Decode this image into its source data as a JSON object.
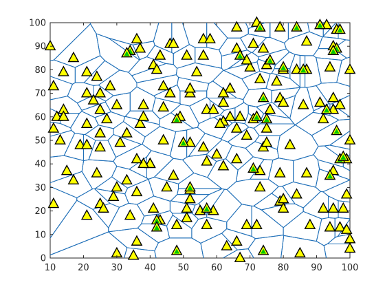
{
  "chart_data": {
    "type": "scatter",
    "title": "",
    "xlabel": "",
    "ylabel": "",
    "xlim": [
      10,
      100
    ],
    "ylim": [
      0,
      100
    ],
    "x_ticks": [
      10,
      20,
      30,
      40,
      50,
      60,
      70,
      80,
      90,
      100
    ],
    "y_ticks": [
      0,
      10,
      20,
      30,
      40,
      50,
      60,
      70,
      80,
      90,
      100
    ],
    "x_tick_labels": [
      "10",
      "20",
      "30",
      "40",
      "50",
      "60",
      "70",
      "80",
      "90",
      "100"
    ],
    "y_tick_labels": [
      "0",
      "10",
      "20",
      "30",
      "40",
      "50",
      "60",
      "70",
      "80",
      "90",
      "100"
    ],
    "grid": false,
    "legend": "none",
    "marker_colors": {
      "fill": "#ffff00",
      "edge": "#000000",
      "inner": "#00c800",
      "edges": "#1f6fb8"
    },
    "points_triangle": [
      [
        10,
        90
      ],
      [
        17,
        85
      ],
      [
        14,
        79
      ],
      [
        21,
        79
      ],
      [
        11,
        73
      ],
      [
        24,
        77
      ],
      [
        28,
        73
      ],
      [
        21,
        70
      ],
      [
        25,
        70
      ],
      [
        23,
        67
      ],
      [
        14,
        63
      ],
      [
        12,
        60
      ],
      [
        25,
        63
      ],
      [
        30,
        65
      ],
      [
        21,
        57
      ],
      [
        27,
        59
      ],
      [
        11,
        55
      ],
      [
        13,
        50
      ],
      [
        19,
        48
      ],
      [
        21,
        48
      ],
      [
        25,
        47
      ],
      [
        25,
        53
      ],
      [
        33,
        53
      ],
      [
        31,
        49
      ],
      [
        37,
        57
      ],
      [
        38,
        60
      ],
      [
        38,
        65
      ],
      [
        44,
        50
      ],
      [
        44,
        64
      ],
      [
        49,
        60
      ],
      [
        44,
        73
      ],
      [
        46,
        70
      ],
      [
        52,
        70
      ],
      [
        54,
        79
      ],
      [
        52,
        72
      ],
      [
        36,
        93
      ],
      [
        37,
        89
      ],
      [
        46,
        91
      ],
      [
        41,
        82
      ],
      [
        43,
        86
      ],
      [
        47,
        91
      ],
      [
        51,
        86
      ],
      [
        56,
        93
      ],
      [
        58,
        93
      ],
      [
        56,
        86
      ],
      [
        42,
        80
      ],
      [
        57,
        63
      ],
      [
        59,
        63
      ],
      [
        62,
        66
      ],
      [
        64,
        72
      ],
      [
        62,
        58
      ],
      [
        64,
        60
      ],
      [
        66,
        55
      ],
      [
        67,
        60
      ],
      [
        66,
        42
      ],
      [
        56,
        47
      ],
      [
        52,
        49
      ],
      [
        57,
        41
      ],
      [
        52,
        29
      ],
      [
        47,
        35
      ],
      [
        45,
        30
      ],
      [
        40,
        40
      ],
      [
        40,
        40
      ],
      [
        38,
        40
      ],
      [
        36,
        42
      ],
      [
        41,
        21
      ],
      [
        43,
        16
      ],
      [
        51,
        21
      ],
      [
        51,
        17
      ],
      [
        33,
        33
      ],
      [
        36,
        28
      ],
      [
        29,
        26
      ],
      [
        25,
        23
      ],
      [
        26,
        21
      ],
      [
        21,
        18
      ],
      [
        15,
        37
      ],
      [
        17,
        33
      ],
      [
        11,
        23
      ],
      [
        24,
        36
      ],
      [
        14,
        60
      ],
      [
        34,
        18
      ],
      [
        36,
        7
      ],
      [
        30,
        2
      ],
      [
        35,
        1
      ],
      [
        55,
        20
      ],
      [
        48,
        14
      ],
      [
        57,
        14
      ],
      [
        59,
        20
      ],
      [
        63,
        5
      ],
      [
        66,
        7
      ],
      [
        67,
        0
      ],
      [
        69,
        14
      ],
      [
        72,
        14
      ],
      [
        73,
        30
      ],
      [
        73,
        37
      ],
      [
        74,
        47
      ],
      [
        69,
        52
      ],
      [
        72,
        60
      ],
      [
        75,
        55
      ],
      [
        75,
        49
      ],
      [
        79,
        36
      ],
      [
        79,
        24
      ],
      [
        80,
        21
      ],
      [
        80,
        25
      ],
      [
        84,
        27
      ],
      [
        82,
        48
      ],
      [
        87,
        36
      ],
      [
        85,
        2
      ],
      [
        88,
        14
      ],
      [
        92,
        21
      ],
      [
        95,
        21
      ],
      [
        98,
        21
      ],
      [
        94,
        13
      ],
      [
        97,
        13
      ],
      [
        99,
        12
      ],
      [
        100,
        8
      ],
      [
        100,
        4
      ],
      [
        99,
        27
      ],
      [
        95,
        37
      ],
      [
        100,
        50
      ],
      [
        99,
        42
      ],
      [
        95,
        63
      ],
      [
        92,
        59
      ],
      [
        97,
        65
      ],
      [
        95,
        68
      ],
      [
        91,
        66
      ],
      [
        86,
        65
      ],
      [
        84,
        80
      ],
      [
        87,
        80
      ],
      [
        80,
        80
      ],
      [
        78,
        75
      ],
      [
        79,
        68
      ],
      [
        73,
        76
      ],
      [
        75,
        82
      ],
      [
        76,
        63
      ],
      [
        80,
        66
      ],
      [
        70,
        81
      ],
      [
        69,
        84
      ],
      [
        71,
        91
      ],
      [
        73,
        98
      ],
      [
        72,
        100
      ],
      [
        66,
        98
      ],
      [
        66,
        89
      ],
      [
        74,
        89
      ],
      [
        79,
        98
      ],
      [
        87,
        92
      ],
      [
        96,
        97
      ],
      [
        100,
        80
      ],
      [
        94,
        81
      ],
      [
        93,
        99
      ],
      [
        95,
        90
      ],
      [
        62,
        70
      ],
      [
        61,
        57
      ],
      [
        60,
        44
      ],
      [
        62,
        39
      ],
      [
        71,
        59
      ],
      [
        52,
        25
      ],
      [
        30,
        30
      ]
    ],
    "points_green": [
      [
        34,
        88
      ],
      [
        48,
        59
      ],
      [
        50,
        49
      ],
      [
        52,
        30
      ],
      [
        57,
        21
      ],
      [
        42,
        16
      ],
      [
        48,
        3
      ],
      [
        74,
        3
      ],
      [
        71,
        38
      ],
      [
        72,
        60
      ],
      [
        75,
        59
      ],
      [
        74,
        68
      ],
      [
        76,
        84
      ],
      [
        80,
        81
      ],
      [
        86,
        80
      ],
      [
        84,
        98
      ],
      [
        91,
        99
      ],
      [
        97,
        97
      ],
      [
        96,
        89
      ],
      [
        95,
        88
      ],
      [
        93,
        63
      ],
      [
        96,
        54
      ],
      [
        97,
        42
      ],
      [
        94,
        35
      ],
      [
        98,
        43
      ],
      [
        67,
        86
      ],
      [
        73,
        98
      ],
      [
        42,
        13
      ],
      [
        33,
        87
      ]
    ]
  }
}
